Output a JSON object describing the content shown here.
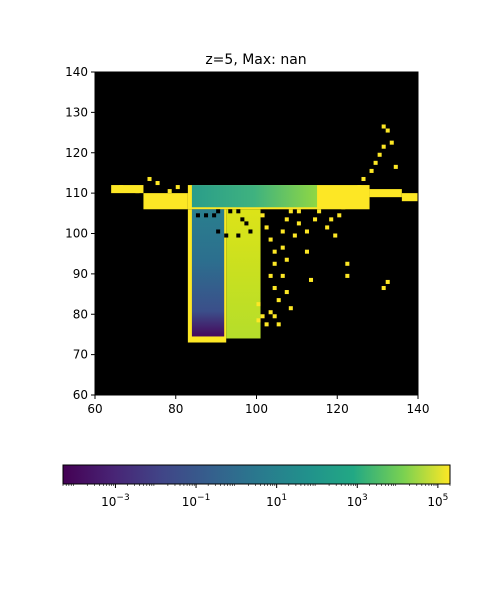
{
  "chart_data": {
    "type": "heatmap",
    "title": "z=5, Max: nan",
    "xlim": [
      60,
      140
    ],
    "ylim": [
      60,
      140
    ],
    "xticks": [
      60,
      80,
      100,
      120,
      140
    ],
    "yticks": [
      60,
      70,
      80,
      90,
      100,
      110,
      120,
      130,
      140
    ],
    "xtick_labels": [
      "60",
      "80",
      "100",
      "120",
      "140"
    ],
    "ytick_labels": [
      "60",
      "70",
      "80",
      "90",
      "100",
      "110",
      "120",
      "130",
      "140"
    ],
    "background_value": "nan (rendered black)",
    "colorbar": {
      "orientation": "horizontal",
      "scale": "log",
      "range": [
        5e-05,
        200000
      ],
      "ticks": [
        0.001,
        0.1,
        10,
        1000,
        100000
      ],
      "tick_base": [
        "10",
        "10",
        "10",
        "10",
        "10"
      ],
      "tick_exp": [
        "−3",
        "−1",
        "1",
        "3",
        "5"
      ],
      "colormap": "viridis"
    },
    "regions": [
      {
        "name": "horizontal bar (yellow, saturated)",
        "x": [
          70,
          128
        ],
        "y": [
          106,
          112
        ],
        "value": 100000
      },
      {
        "name": "horizontal bar gradient core",
        "x": [
          84,
          115
        ],
        "y": [
          106,
          112
        ],
        "value_range": [
          10,
          1000
        ]
      },
      {
        "name": "vertical stem (gradient)",
        "x": [
          84,
          92
        ],
        "y": [
          74,
          106
        ],
        "value_range": [
          0.0001,
          0.1
        ]
      },
      {
        "name": "right stem (yellow-green)",
        "x": [
          92,
          101
        ],
        "y": [
          74,
          106
        ],
        "value_range": [
          1000,
          100000
        ]
      }
    ]
  },
  "colors": {
    "background": "#000000",
    "max": "#fde725",
    "min": "#440154"
  }
}
